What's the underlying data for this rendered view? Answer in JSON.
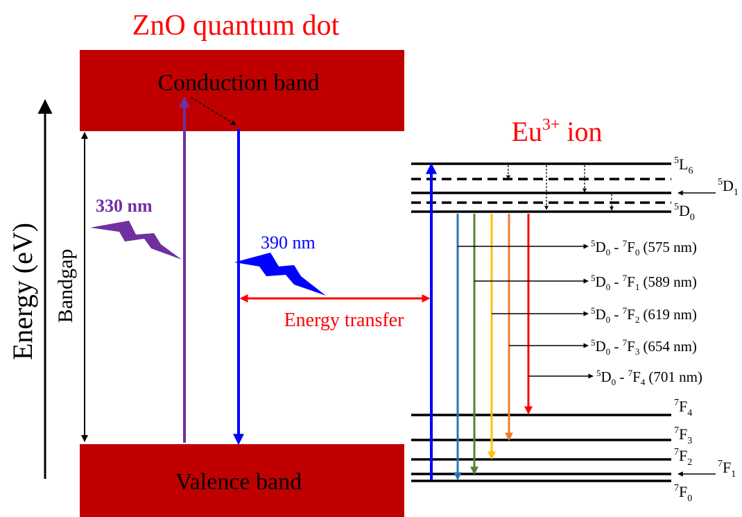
{
  "colors": {
    "band": "#c00000",
    "purple": "#7030a0",
    "blue": "#0000ff",
    "red_text": "#ff0000",
    "steel_blue": "#2e75b6",
    "green": "#548235",
    "yellow": "#ffc000",
    "orange": "#ed7d31",
    "red_arrow": "#ff0000",
    "black": "#000000"
  },
  "zno": {
    "title": "ZnO quantum dot",
    "conduction_band": "Conduction band",
    "valence_band": "Valence band",
    "bandgap": "Bandgap",
    "axis_label": "Energy (eV)",
    "excitation_330": "330 nm",
    "emission_390": "390 nm",
    "lightning_icons": [
      "lightning-bolt-icon",
      "lightning-bolt-icon"
    ]
  },
  "transfer_label": "Energy transfer",
  "eu": {
    "title_main": "Eu",
    "title_sup": "3+",
    "title_rest": " ion",
    "levels": [
      {
        "id": "5L6",
        "sup": "5",
        "main": "L",
        "sub": "6",
        "style": "solid"
      },
      {
        "id": "5D1",
        "sup": "5",
        "main": "D",
        "sub": "1",
        "style": "solid"
      },
      {
        "id": "5D0",
        "sup": "5",
        "main": "D",
        "sub": "0",
        "style": "solid"
      },
      {
        "id": "7F4",
        "sup": "7",
        "main": "F",
        "sub": "4",
        "style": "solid"
      },
      {
        "id": "7F3",
        "sup": "7",
        "main": "F",
        "sub": "3",
        "style": "solid"
      },
      {
        "id": "7F2",
        "sup": "7",
        "main": "F",
        "sub": "2",
        "style": "solid"
      },
      {
        "id": "7F1",
        "sup": "7",
        "main": "F",
        "sub": "1",
        "style": "solid"
      },
      {
        "id": "7F0",
        "sup": "7",
        "main": "F",
        "sub": "0",
        "style": "solid"
      }
    ],
    "transitions": [
      {
        "from_sup": "5",
        "from_main": "D",
        "from_sub": "0",
        "to_sup": "7",
        "to_main": "F",
        "to_sub": "0",
        "wavelength": "(575 nm)",
        "color_key": "steel_blue"
      },
      {
        "from_sup": "5",
        "from_main": "D",
        "from_sub": "0",
        "to_sup": "7",
        "to_main": "F",
        "to_sub": "1",
        "wavelength": "(589 nm)",
        "color_key": "green"
      },
      {
        "from_sup": "5",
        "from_main": "D",
        "from_sub": "0",
        "to_sup": "7",
        "to_main": "F",
        "to_sub": "2",
        "wavelength": "(619 nm)",
        "color_key": "yellow"
      },
      {
        "from_sup": "5",
        "from_main": "D",
        "from_sub": "0",
        "to_sup": "7",
        "to_main": "F",
        "to_sub": "3",
        "wavelength": "(654 nm)",
        "color_key": "orange"
      },
      {
        "from_sup": "5",
        "from_main": "D",
        "from_sub": "0",
        "to_sup": "7",
        "to_main": "F",
        "to_sub": "4",
        "wavelength": "(701 nm)",
        "color_key": "red_arrow"
      }
    ],
    "separator": " - "
  }
}
